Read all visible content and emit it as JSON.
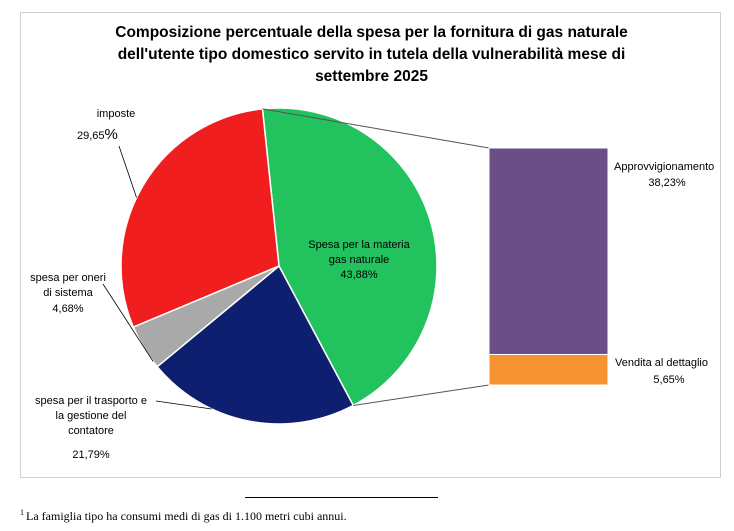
{
  "chart_data": {
    "type": "pie",
    "title": "Composizione percentuale della spesa per la fornitura di gas naturale\ndell'utente tipo domestico servito in tutela della vulnerabilità mese di\nsettembre 2025",
    "slices": [
      {
        "label": "Spesa per la materia gas naturale",
        "value": 43.88,
        "display": "43,88%",
        "color": "#22c35e",
        "label_lines": [
          "Spesa per la materia",
          "gas naturale"
        ]
      },
      {
        "label": "spesa per il trasporto e la gestione del contatore",
        "value": 21.79,
        "display": "21,79%",
        "color": "#0d1f6e",
        "label_lines": [
          "spesa per il trasporto e",
          "la gestione del",
          "contatore"
        ]
      },
      {
        "label": "spesa per oneri di sistema",
        "value": 4.68,
        "display": "4,68%",
        "color": "#a9a9a9",
        "label_lines": [
          "spesa per oneri",
          "di sistema"
        ]
      },
      {
        "label": "imposte",
        "value": 29.65,
        "display": "29,65",
        "display_unit": "%",
        "color": "#f01e1e",
        "label_lines": [
          "imposte"
        ]
      }
    ],
    "breakdown": {
      "of": "Spesa per la materia gas naturale",
      "segments": [
        {
          "label": "Approvvigionamento",
          "value": 38.23,
          "display": "38,23%",
          "color": "#6a4f87"
        },
        {
          "label": "Vendita al dettaglio",
          "value": 5.65,
          "display": "5,65%",
          "color": "#f79232"
        }
      ]
    }
  },
  "footnote": {
    "marker": "1",
    "text": "La famiglia tipo ha consumi medi di gas di 1.100 metri cubi annui."
  }
}
